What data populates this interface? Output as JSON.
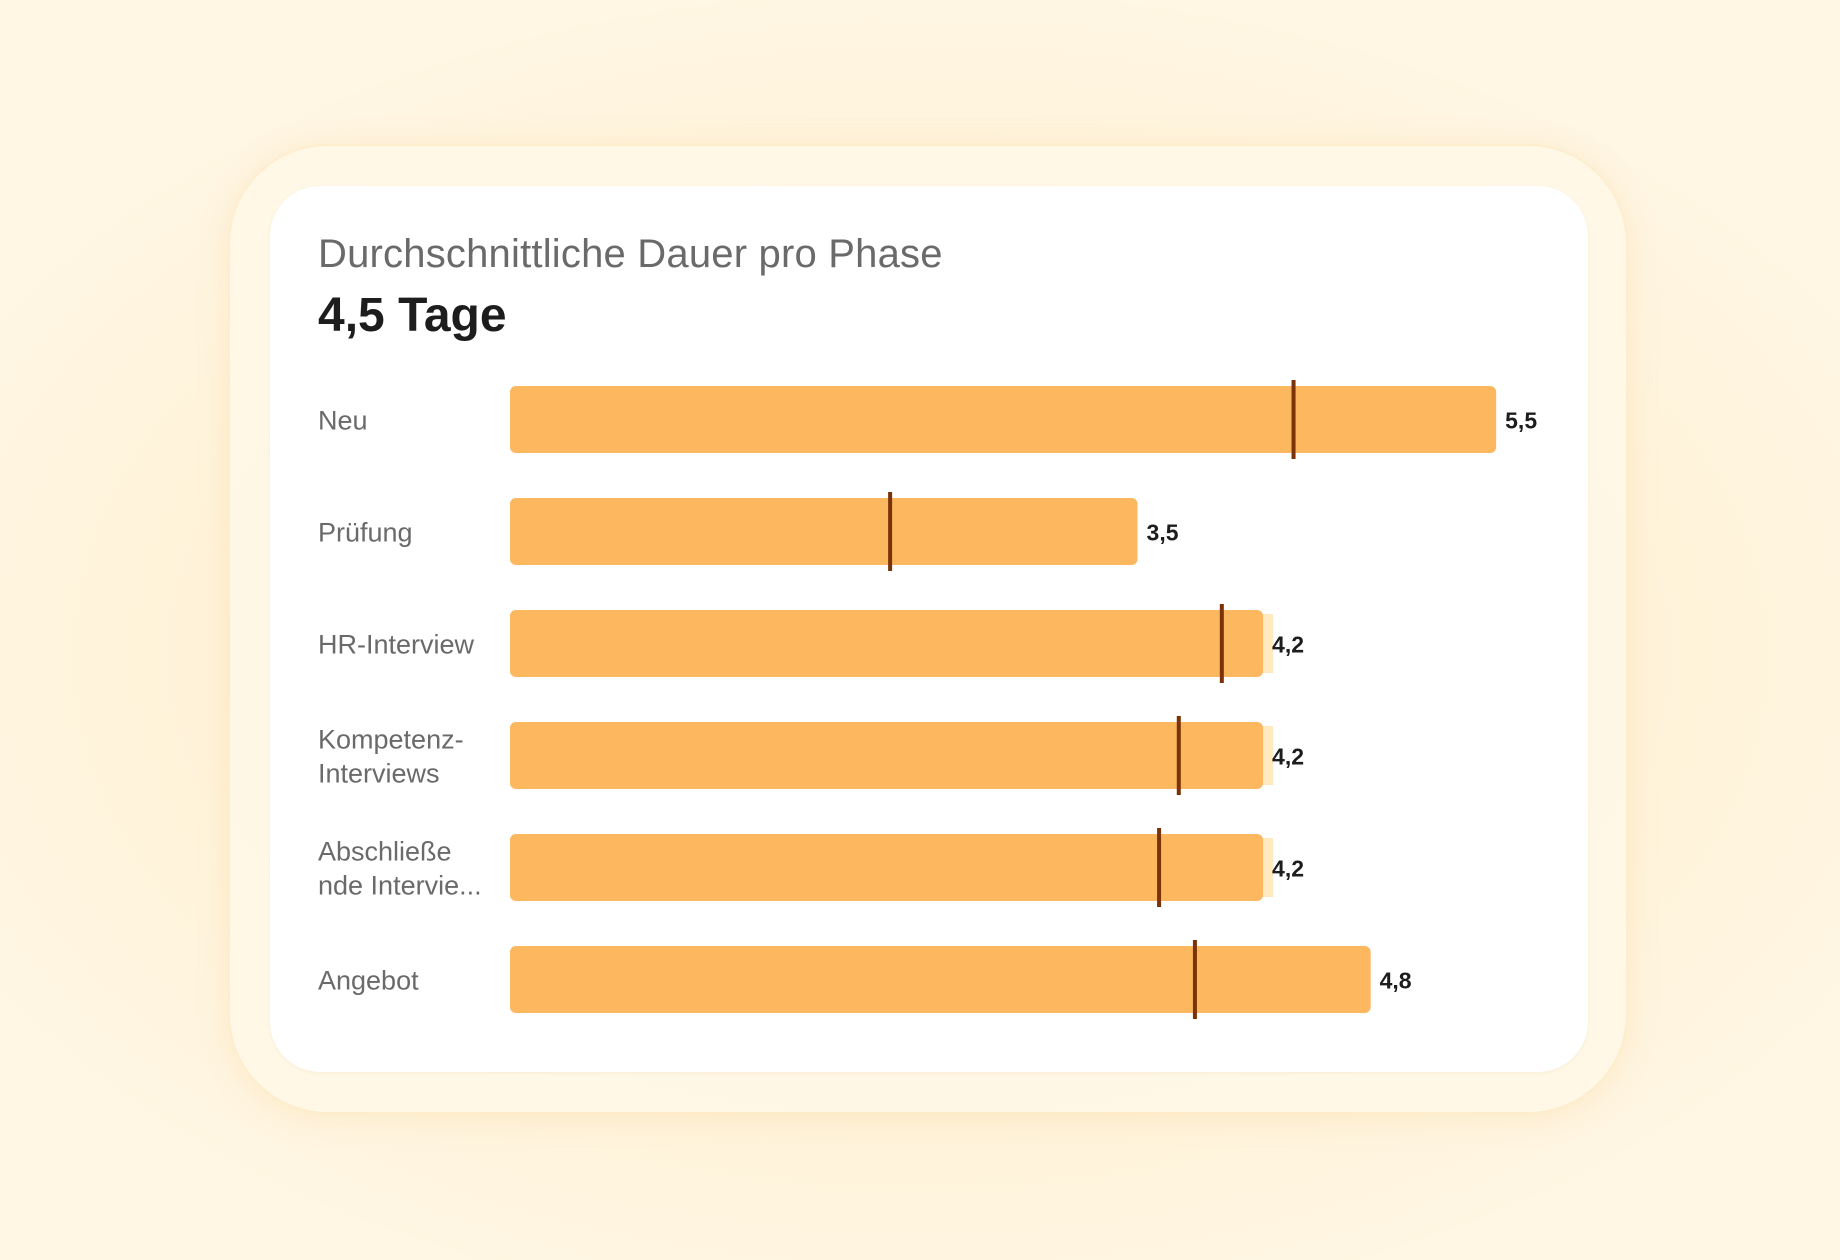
{
  "header": {
    "subtitle": "Durchschnittliche Dauer pro Phase",
    "headline": "4,5 Tage"
  },
  "chart_data": {
    "type": "bar",
    "orientation": "horizontal",
    "title": "Durchschnittliche Dauer pro Phase",
    "summary_value": "4,5 Tage",
    "unit": "Tage",
    "xlim": [
      0,
      5.5
    ],
    "categories": [
      [
        "Neu"
      ],
      [
        "Prüfung"
      ],
      [
        "HR-Interview"
      ],
      [
        "Kompetenz-",
        "Interviews"
      ],
      [
        "Abschließe",
        "nde Intervie..."
      ],
      [
        "Angebot"
      ]
    ],
    "series": [
      {
        "name": "Durchschnittliche Dauer",
        "values": [
          5.5,
          3.5,
          4.2,
          4.2,
          4.2,
          4.8
        ],
        "labels": [
          "5,5",
          "3,5",
          "4,2",
          "4,2",
          "4,2",
          "4,8"
        ]
      },
      {
        "name": "Band",
        "values": [
          null,
          2.12,
          4.07,
          4.08,
          4.08,
          null
        ]
      },
      {
        "name": "Marker",
        "values": [
          4.37,
          2.12,
          3.97,
          3.73,
          3.62,
          3.82
        ]
      }
    ],
    "colors": {
      "bar": "#FDB75E",
      "band": "#FFE9BE",
      "marker": "#7A3206",
      "label": "#1d1d1d",
      "category_label": "#6a6a6a"
    }
  }
}
